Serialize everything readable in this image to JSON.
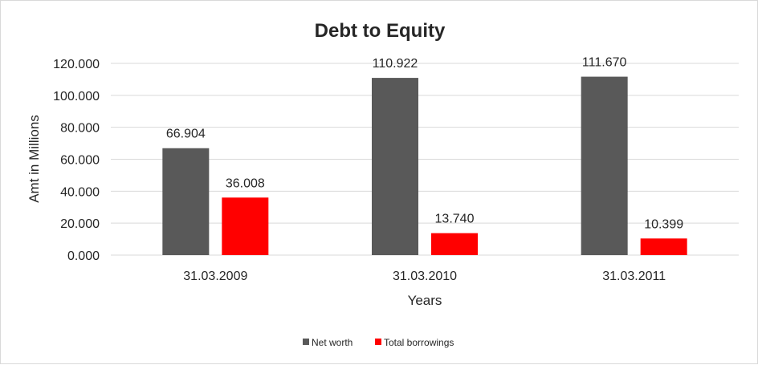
{
  "chart_data": {
    "type": "bar",
    "title": "Debt to Equity",
    "xlabel": "Years",
    "ylabel": "Amt in Millions",
    "categories": [
      "31.03.2009",
      "31.03.2010",
      "31.03.2011"
    ],
    "series": [
      {
        "name": "Net worth",
        "values": [
          66.904,
          110.922,
          111.67
        ],
        "labels": [
          "66.904",
          "110.922",
          "111.670"
        ],
        "color": "#595959"
      },
      {
        "name": "Total borrowings",
        "values": [
          36.008,
          13.74,
          10.399
        ],
        "labels": [
          "36.008",
          "13.740",
          "10.399"
        ],
        "color": "#ff0000"
      }
    ],
    "ylim": [
      0,
      120
    ],
    "yticks": [
      0,
      20,
      40,
      60,
      80,
      100,
      120
    ],
    "ytick_labels": [
      "0.000",
      "20.000",
      "40.000",
      "60.000",
      "80.000",
      "100.000",
      "120.000"
    ],
    "grid": true,
    "legend_position": "bottom"
  }
}
